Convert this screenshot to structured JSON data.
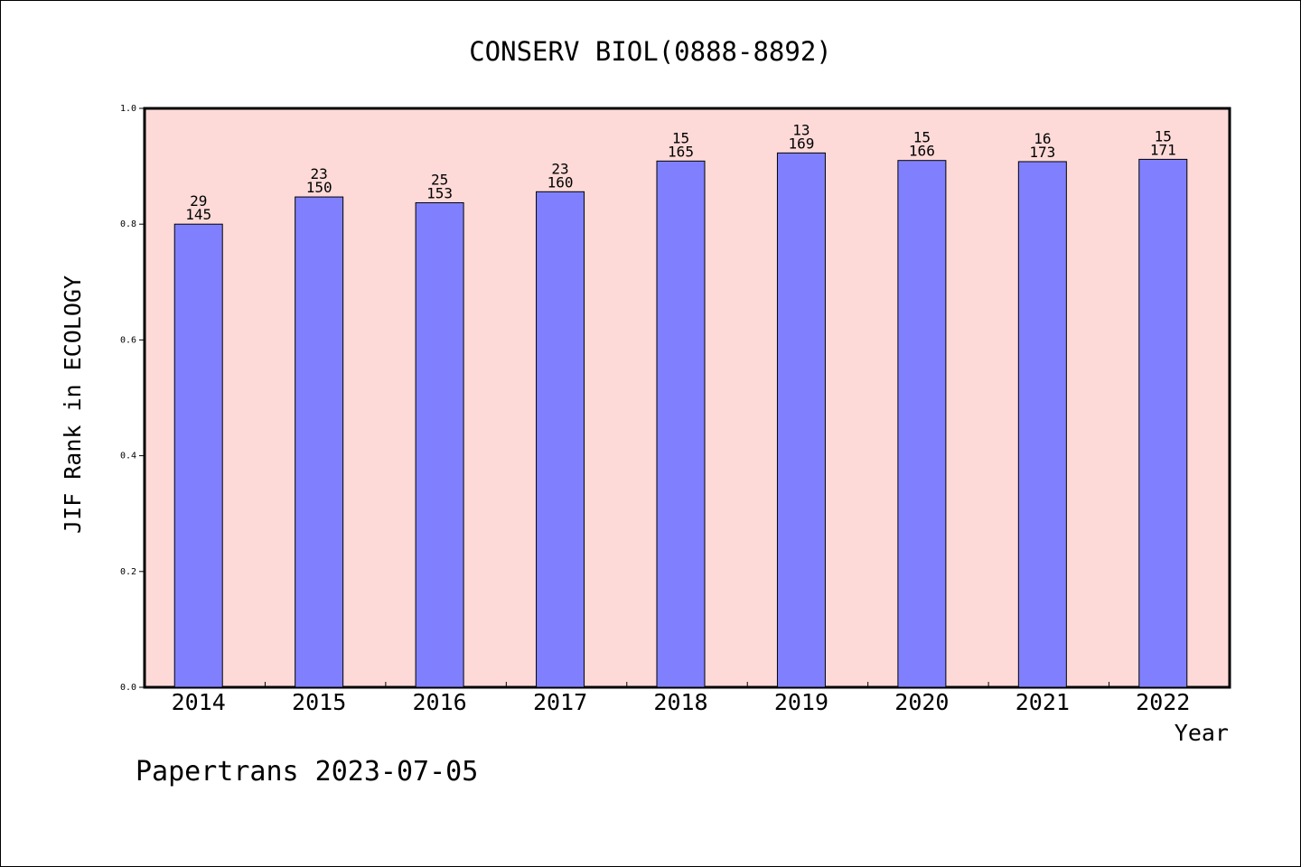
{
  "chart_data": {
    "type": "bar",
    "title": "CONSERV BIOL(0888-8892)",
    "xlabel": "Year",
    "ylabel": "JIF Rank in ECOLOGY",
    "ylim": [
      0,
      1.0
    ],
    "yticks": [
      "0.0",
      "0.2",
      "0.4",
      "0.6",
      "0.8",
      "1.0"
    ],
    "grid": false,
    "categories": [
      "2014",
      "2015",
      "2016",
      "2017",
      "2018",
      "2019",
      "2020",
      "2021",
      "2022"
    ],
    "values": [
      0.8,
      0.847,
      0.837,
      0.856,
      0.909,
      0.923,
      0.91,
      0.908,
      0.912
    ],
    "rank_labels": [
      "29",
      "23",
      "25",
      "23",
      "15",
      "13",
      "15",
      "16",
      "15"
    ],
    "total_labels": [
      "145",
      "150",
      "153",
      "160",
      "165",
      "169",
      "166",
      "173",
      "171"
    ],
    "colors": {
      "plot_background": "#fddad8",
      "bar_fill": "#8080ff",
      "bar_stroke": "#000000"
    }
  },
  "footer": {
    "credit": "Papertrans 2023-07-05"
  }
}
